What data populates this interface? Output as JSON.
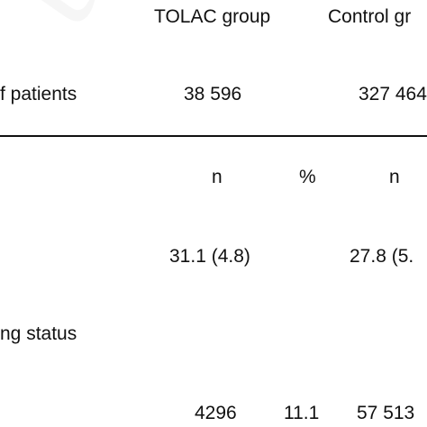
{
  "table": {
    "headers": {
      "tolac_group": "TOLAC group",
      "control_group": "Control gr"
    },
    "patients_row": {
      "label": "f patients",
      "tolac_value": "38 596",
      "control_value": "327 464"
    },
    "subheaders": {
      "tolac_n": "n",
      "tolac_pct": "%",
      "control_n": "n"
    },
    "age_row": {
      "tolac_value": "31.1 (4.8)",
      "control_value": "27.8 (5."
    },
    "smoking_row": {
      "label": "ng status"
    },
    "first_data_row": {
      "tolac_n": "4296",
      "tolac_pct": "11.1",
      "control_n": "57 513"
    }
  }
}
